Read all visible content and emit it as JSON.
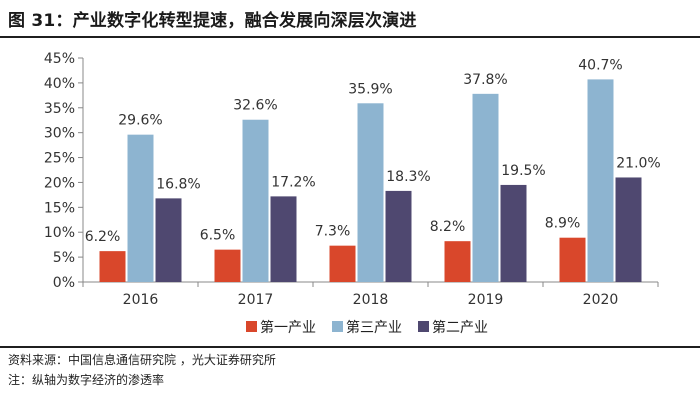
{
  "title": "图 31：产业数字化转型提速，融合发展向深层次演进",
  "chart_data": {
    "type": "bar",
    "categories": [
      "2016",
      "2017",
      "2018",
      "2019",
      "2020"
    ],
    "series": [
      {
        "name": "第一产业",
        "values": [
          6.2,
          6.5,
          7.3,
          8.2,
          8.9
        ],
        "labels": [
          "6.2%",
          "6.5%",
          "7.3%",
          "8.2%",
          "8.9%"
        ],
        "color": "#d9472b"
      },
      {
        "name": "第三产业",
        "values": [
          29.6,
          32.6,
          35.9,
          37.8,
          40.7
        ],
        "labels": [
          "29.6%",
          "32.6%",
          "35.9%",
          "37.8%",
          "40.7%"
        ],
        "color": "#8db4d0"
      },
      {
        "name": "第二产业",
        "values": [
          16.8,
          17.2,
          18.3,
          19.5,
          21.0
        ],
        "labels": [
          "16.8%",
          "17.2%",
          "18.3%",
          "19.5%",
          "21.0%"
        ],
        "color": "#4f4870"
      }
    ],
    "ylim": [
      0,
      45
    ],
    "yticks": [
      0,
      5,
      10,
      15,
      20,
      25,
      30,
      35,
      40,
      45
    ],
    "ytick_labels": [
      "0%",
      "5%",
      "10%",
      "15%",
      "20%",
      "25%",
      "30%",
      "35%",
      "40%",
      "45%"
    ],
    "grid": false,
    "legend_position": "bottom"
  },
  "source": "资料来源：中国信息通信研究院 ，光大证券研究所",
  "footnote": "注：纵轴为数字经济的渗透率"
}
